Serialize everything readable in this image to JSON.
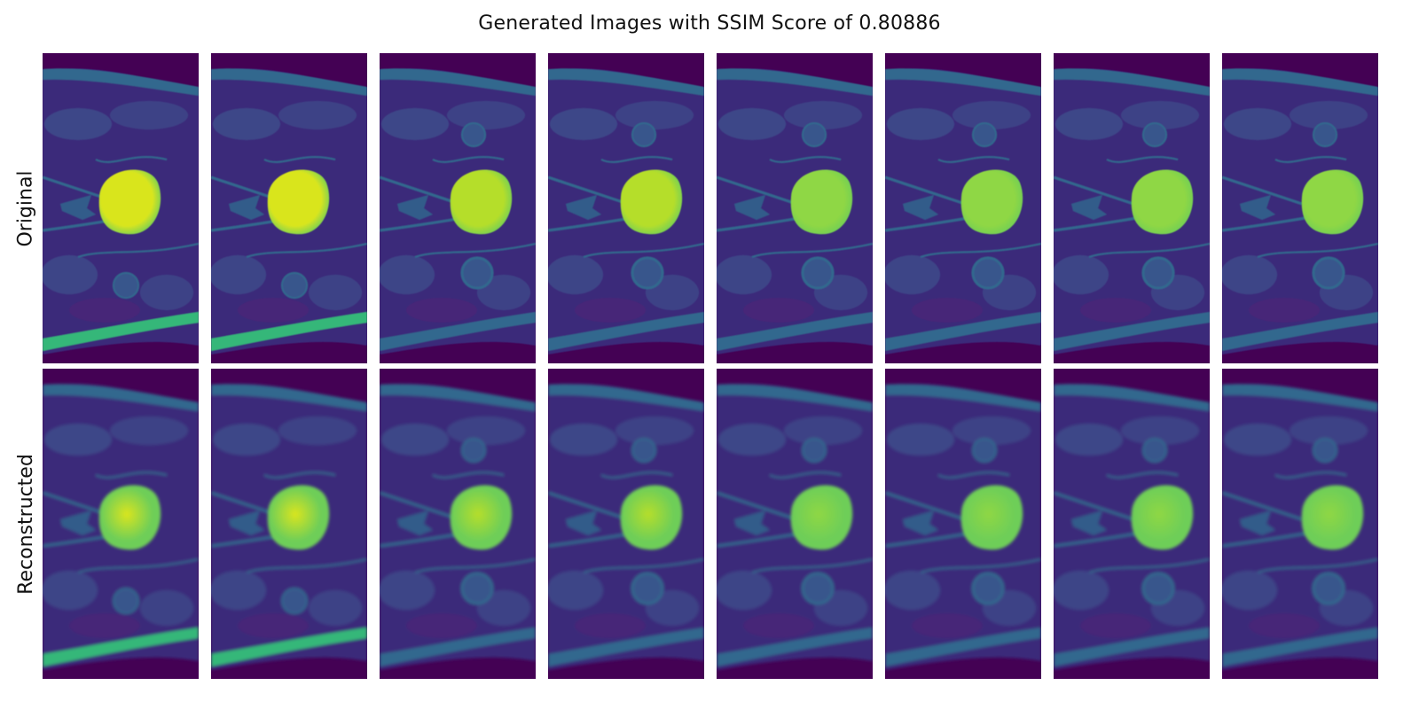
{
  "title": "Generated Images with SSIM Score of 0.80886",
  "rows": [
    {
      "label": "Original",
      "kind": "original"
    },
    {
      "label": "Reconstructed",
      "kind": "reconstructed"
    }
  ],
  "images_per_row": 8,
  "colors": {
    "background_tissue": "#440154",
    "tissue_dark": "#3b2a7a",
    "tissue_mid": "#31688e",
    "tissue_bright": "#35b779",
    "lesion_bright": "#d9e51f",
    "lesion_green": "#6ece58"
  }
}
